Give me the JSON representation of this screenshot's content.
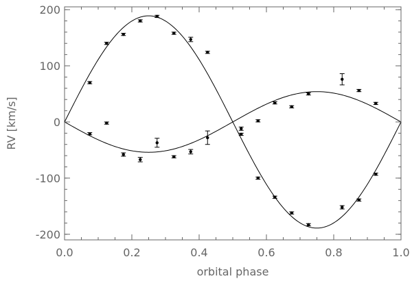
{
  "chart_data": {
    "type": "scatter",
    "title": "",
    "xlabel": "orbital phase",
    "ylabel": "RV [km/s]",
    "xlim": [
      0.0,
      1.0
    ],
    "ylim": [
      -210,
      205
    ],
    "x_ticks": [
      0.0,
      0.2,
      0.4,
      0.6,
      0.8,
      1.0
    ],
    "x_tick_labels": [
      "0.0",
      "0.2",
      "0.4",
      "0.6",
      "0.8",
      "1.0"
    ],
    "y_ticks": [
      -200,
      -100,
      0,
      100,
      200
    ],
    "y_tick_labels": [
      "-200",
      "-100",
      "0",
      "100",
      "200"
    ],
    "grid": false,
    "legend": "none",
    "colors": {
      "axis": "#666666",
      "data": "#000000",
      "curve": "#000000"
    },
    "series": [
      {
        "points": [
          {
            "x": 0.075,
            "y": 70,
            "err": 2
          },
          {
            "x": 0.125,
            "y": 140,
            "err": 2
          },
          {
            "x": 0.175,
            "y": 156,
            "err": 2
          },
          {
            "x": 0.225,
            "y": 180,
            "err": 2
          },
          {
            "x": 0.275,
            "y": 188,
            "err": 2
          },
          {
            "x": 0.325,
            "y": 158,
            "err": 2
          },
          {
            "x": 0.375,
            "y": 147,
            "err": 4
          },
          {
            "x": 0.425,
            "y": 124,
            "err": 2
          },
          {
            "x": 0.525,
            "y": -22,
            "err": 2
          },
          {
            "x": 0.575,
            "y": -100,
            "err": 2
          },
          {
            "x": 0.625,
            "y": -134,
            "err": 2
          },
          {
            "x": 0.675,
            "y": -162,
            "err": 2
          },
          {
            "x": 0.725,
            "y": -183,
            "err": 2
          },
          {
            "x": 0.825,
            "y": -152,
            "err": 3
          },
          {
            "x": 0.875,
            "y": -139,
            "err": 2
          },
          {
            "x": 0.925,
            "y": -93,
            "err": 2
          }
        ],
        "model": {
          "amplitude": 189,
          "shape": "sine"
        }
      },
      {
        "points": [
          {
            "x": 0.075,
            "y": -21,
            "err": 2
          },
          {
            "x": 0.125,
            "y": -2,
            "err": 2
          },
          {
            "x": 0.175,
            "y": -58,
            "err": 3
          },
          {
            "x": 0.225,
            "y": -67,
            "err": 4
          },
          {
            "x": 0.275,
            "y": -37,
            "err": 8
          },
          {
            "x": 0.325,
            "y": -62,
            "err": 2
          },
          {
            "x": 0.375,
            "y": -53,
            "err": 4
          },
          {
            "x": 0.425,
            "y": -28,
            "err": 12
          },
          {
            "x": 0.525,
            "y": -12,
            "err": 3
          },
          {
            "x": 0.575,
            "y": 2,
            "err": 2
          },
          {
            "x": 0.625,
            "y": 34,
            "err": 2
          },
          {
            "x": 0.675,
            "y": 27,
            "err": 2
          },
          {
            "x": 0.725,
            "y": 50,
            "err": 2
          },
          {
            "x": 0.825,
            "y": 76,
            "err": 10
          },
          {
            "x": 0.875,
            "y": 56,
            "err": 2
          },
          {
            "x": 0.925,
            "y": 33,
            "err": 2
          }
        ],
        "model": {
          "amplitude": -54,
          "shape": "sine"
        }
      }
    ]
  }
}
